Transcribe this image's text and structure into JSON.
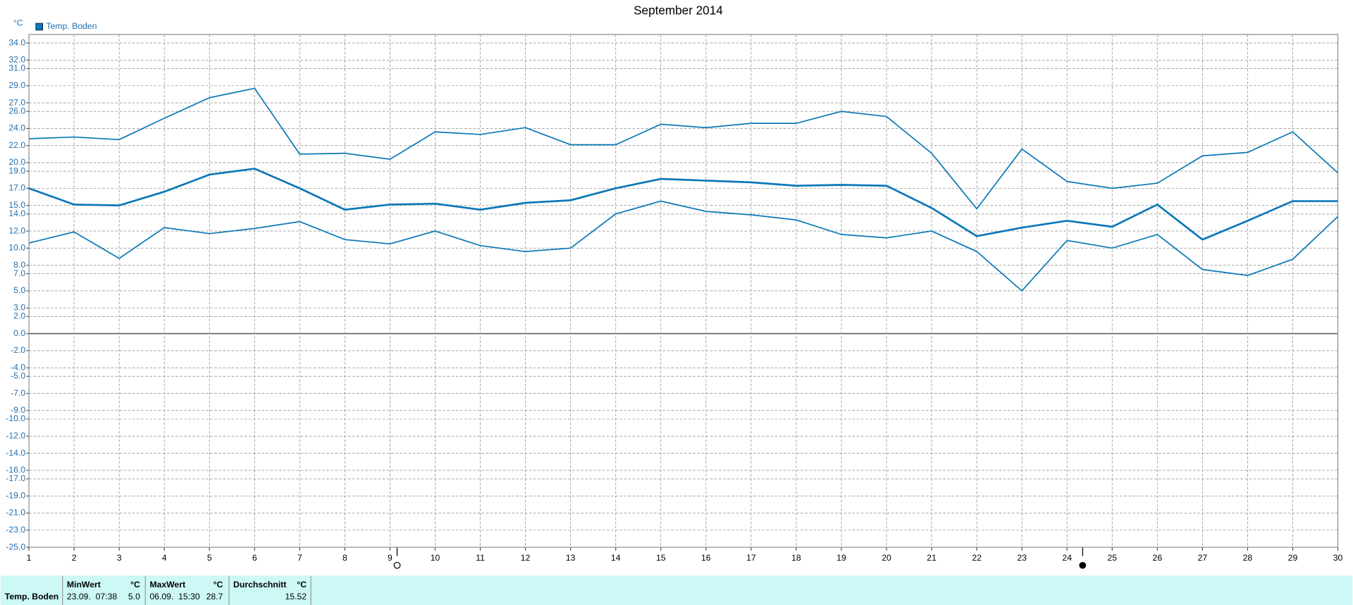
{
  "chart_data": {
    "type": "line",
    "title": "September 2014",
    "y_unit": "°C",
    "x": [
      1,
      2,
      3,
      4,
      5,
      6,
      7,
      8,
      9,
      10,
      11,
      12,
      13,
      14,
      15,
      16,
      17,
      18,
      19,
      20,
      21,
      22,
      23,
      24,
      25,
      26,
      27,
      28,
      29,
      30
    ],
    "xlim": [
      1,
      30
    ],
    "xticks": [
      1,
      2,
      3,
      4,
      5,
      6,
      7,
      8,
      9,
      10,
      11,
      12,
      13,
      14,
      15,
      16,
      17,
      18,
      19,
      20,
      21,
      22,
      23,
      24,
      25,
      26,
      27,
      28,
      29,
      30
    ],
    "ylim": [
      -25,
      35
    ],
    "yticks": [
      {
        "value": 34,
        "label": "34.0"
      },
      {
        "value": 32,
        "label": "32.0"
      },
      {
        "value": 31,
        "label": "31.0"
      },
      {
        "value": 29,
        "label": "29.0"
      },
      {
        "value": 27,
        "label": "27.0"
      },
      {
        "value": 26,
        "label": "26.0"
      },
      {
        "value": 24,
        "label": "24.0"
      },
      {
        "value": 22,
        "label": "22.0"
      },
      {
        "value": 20,
        "label": "20.0"
      },
      {
        "value": 19,
        "label": "19.0"
      },
      {
        "value": 17,
        "label": "17.0"
      },
      {
        "value": 15,
        "label": "15.0"
      },
      {
        "value": 14,
        "label": "14.0"
      },
      {
        "value": 12,
        "label": "12.0"
      },
      {
        "value": 10,
        "label": "10.0"
      },
      {
        "value": 8,
        "label": "8.0"
      },
      {
        "value": 7,
        "label": "7.0"
      },
      {
        "value": 5,
        "label": "5.0"
      },
      {
        "value": 3,
        "label": "3.0"
      },
      {
        "value": 2,
        "label": "2.0"
      },
      {
        "value": 0,
        "label": "0.0"
      },
      {
        "value": -2,
        "label": "-2.0"
      },
      {
        "value": -4,
        "label": "-4.0"
      },
      {
        "value": -5,
        "label": "-5.0"
      },
      {
        "value": -7,
        "label": "-7.0"
      },
      {
        "value": -9,
        "label": "-9.0"
      },
      {
        "value": -10,
        "label": "-10.0"
      },
      {
        "value": -12,
        "label": "-12.0"
      },
      {
        "value": -14,
        "label": "-14.0"
      },
      {
        "value": -16,
        "label": "-16.0"
      },
      {
        "value": -17,
        "label": "-17.0"
      },
      {
        "value": -19,
        "label": "-19.0"
      },
      {
        "value": -21,
        "label": "-21.0"
      },
      {
        "value": -23,
        "label": "-23.0"
      },
      {
        "value": -25,
        "label": "-25.0"
      }
    ],
    "grid": true,
    "legend": "top-left",
    "series": [
      {
        "name": "Temp. Boden",
        "color": "#0a78b8",
        "width": 2.2,
        "values": [
          17.0,
          15.1,
          15.0,
          16.6,
          18.6,
          19.3,
          17.0,
          14.5,
          15.1,
          15.2,
          14.5,
          15.3,
          15.6,
          17.0,
          18.1,
          17.9,
          17.7,
          17.3,
          17.4,
          17.3,
          14.7,
          11.4,
          12.4,
          13.2,
          12.5,
          15.1,
          11.0,
          13.2,
          15.5,
          15.5
        ]
      },
      {
        "color": "#0a78b8",
        "width": 1.4,
        "values": [
          22.8,
          23.0,
          22.7,
          25.2,
          27.6,
          28.7,
          21.0,
          21.1,
          20.4,
          23.6,
          23.3,
          24.1,
          22.1,
          22.1,
          24.5,
          24.1,
          24.6,
          24.6,
          26.0,
          25.4,
          21.1,
          14.6,
          21.6,
          17.8,
          17.0,
          17.6,
          20.8,
          21.2,
          23.6,
          18.8
        ]
      },
      {
        "color": "#0a78b8",
        "width": 1.4,
        "values": [
          10.6,
          11.9,
          8.8,
          12.4,
          11.7,
          12.3,
          13.1,
          11.0,
          10.5,
          12.0,
          10.3,
          9.6,
          10.0,
          14.0,
          15.5,
          14.3,
          13.9,
          13.3,
          11.6,
          11.2,
          12.0,
          9.6,
          5.0,
          10.9,
          10.0,
          11.6,
          7.5,
          6.8,
          8.7,
          13.7
        ]
      }
    ]
  },
  "stats": {
    "header": [
      "MinWert",
      "°C",
      "MaxWert",
      "°C",
      "Durchschnitt",
      "°C"
    ],
    "row": [
      "Temp. Boden",
      "23.09.  07:38",
      "5.0",
      "06.09.  15:30",
      "28.7",
      "15.52"
    ]
  }
}
